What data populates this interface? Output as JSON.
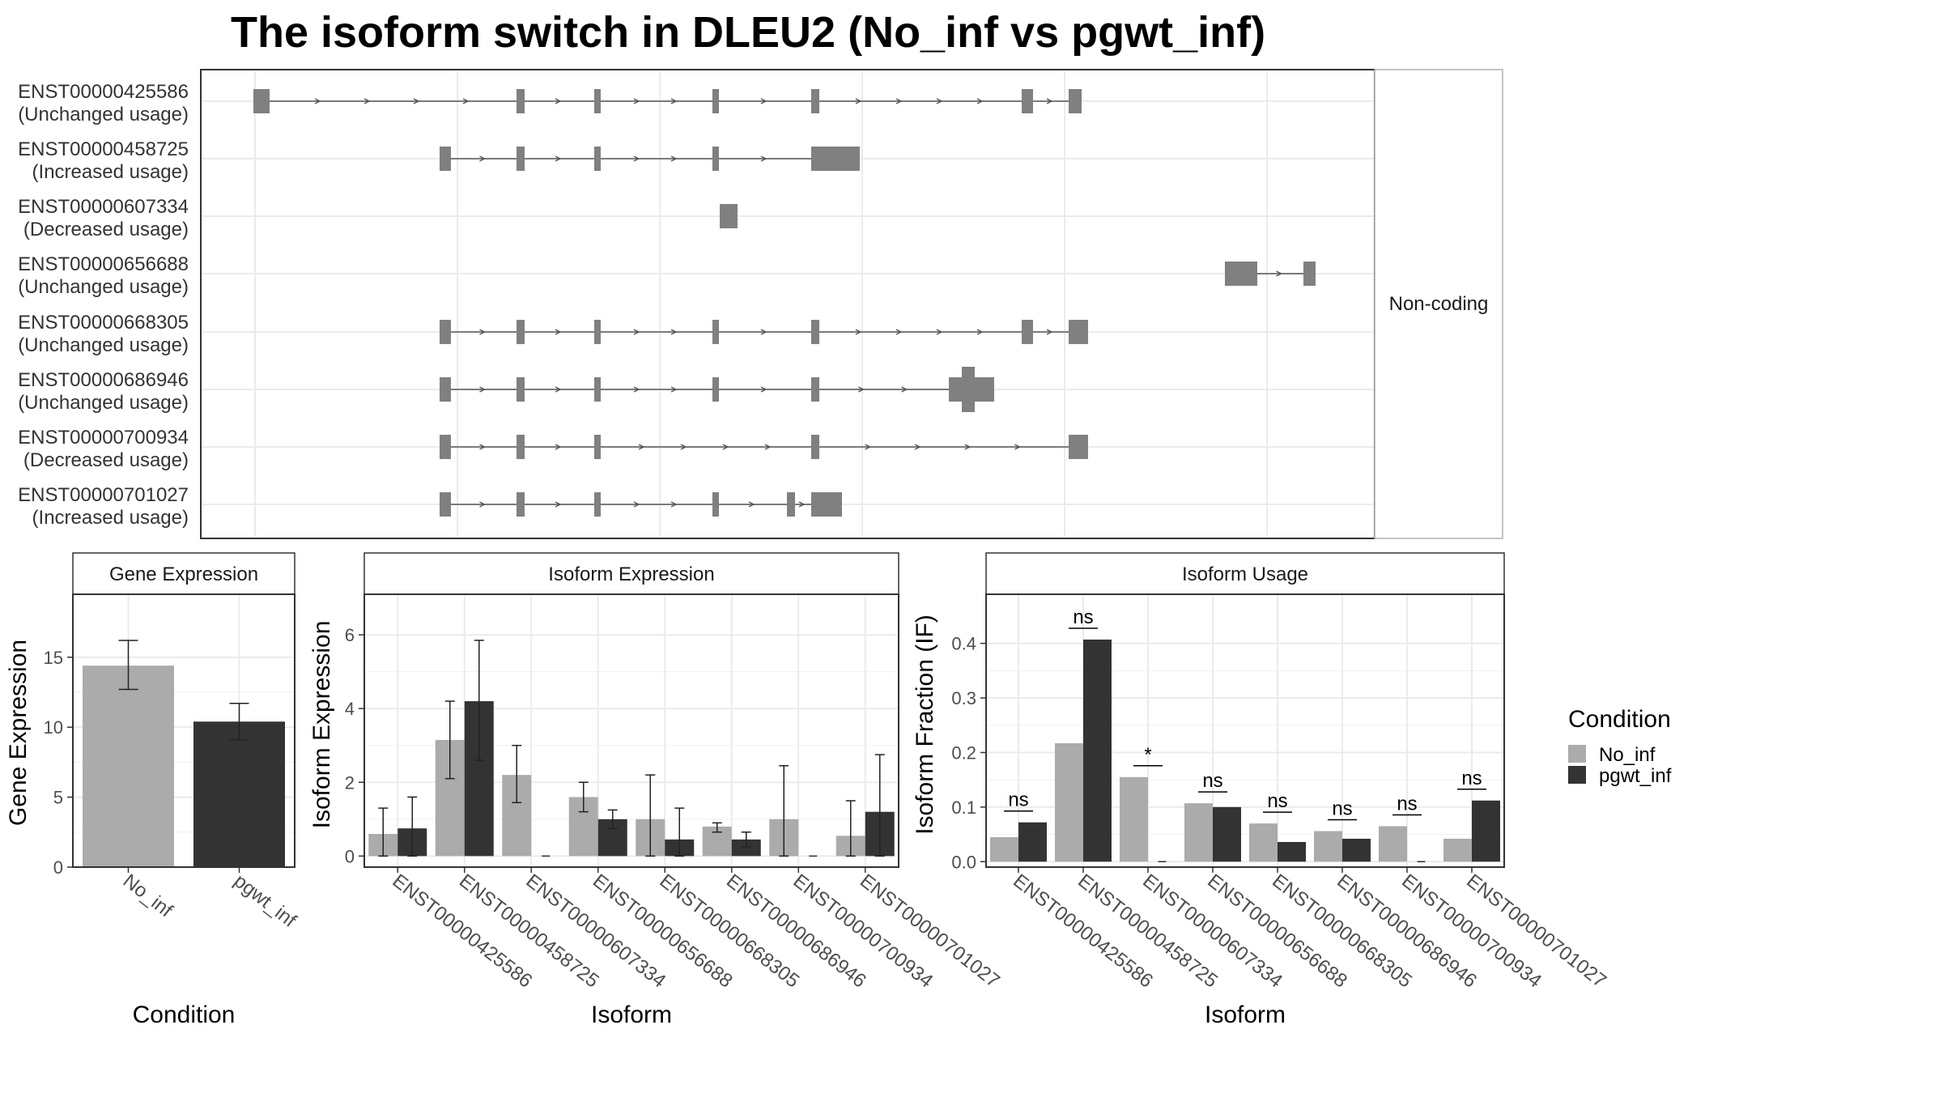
{
  "title": "The isoform switch in DLEU2 (No_inf vs pgwt_inf)",
  "colors": {
    "no_inf": "#ababab",
    "pgwt_inf": "#333333",
    "exon": "#808080",
    "intron": "#555555",
    "grid": "#ebebeb",
    "strip_bg": "#ffffff",
    "border": "#333333"
  },
  "transcript_panel": {
    "facet_label": "Non-coding",
    "isoforms": [
      {
        "id": "ENST00000425586",
        "usage": "(Unchanged usage)"
      },
      {
        "id": "ENST00000458725",
        "usage": "(Increased usage)"
      },
      {
        "id": "ENST00000607334",
        "usage": "(Decreased usage)"
      },
      {
        "id": "ENST00000656688",
        "usage": "(Unchanged usage)"
      },
      {
        "id": "ENST00000668305",
        "usage": "(Unchanged usage)"
      },
      {
        "id": "ENST00000686946",
        "usage": "(Unchanged usage)"
      },
      {
        "id": "ENST00000700934",
        "usage": "(Decreased usage)"
      },
      {
        "id": "ENST00000701027",
        "usage": "(Increased usage)"
      }
    ]
  },
  "legend": {
    "title": "Condition",
    "items": [
      "No_inf",
      "pgwt_inf"
    ]
  },
  "chart_data": [
    {
      "type": "bar",
      "panel": "Gene Expression",
      "strip": "Gene Expression",
      "xlabel": "Condition",
      "ylabel": "Gene Expression",
      "categories": [
        "No_inf",
        "pgwt_inf"
      ],
      "values": [
        14.4,
        10.4
      ],
      "error_low": [
        12.7,
        9.1
      ],
      "error_high": [
        16.2,
        11.7
      ],
      "yticks": [
        "0",
        "5",
        "10",
        "15"
      ],
      "ylim": [
        0,
        19.5
      ]
    },
    {
      "type": "bar",
      "panel": "Isoform Expression",
      "strip": "Isoform Expression",
      "xlabel": "Isoform",
      "ylabel": "Isoform Expression",
      "categories": [
        "ENST00000425586",
        "ENST00000458725",
        "ENST00000607334",
        "ENST00000656688",
        "ENST00000668305",
        "ENST00000686946",
        "ENST00000700934",
        "ENST00000701027"
      ],
      "series": [
        {
          "name": "No_inf",
          "values": [
            0.6,
            3.15,
            2.2,
            1.6,
            1.0,
            0.8,
            1.0,
            0.55
          ],
          "error_low": [
            0.0,
            2.1,
            1.45,
            1.2,
            0.0,
            0.65,
            0.0,
            0.0
          ],
          "error_high": [
            1.3,
            4.2,
            3.0,
            2.0,
            2.2,
            0.9,
            2.45,
            1.5
          ]
        },
        {
          "name": "pgwt_inf",
          "values": [
            0.75,
            4.2,
            0.0,
            1.0,
            0.45,
            0.45,
            0.0,
            1.2
          ],
          "error_low": [
            0.0,
            2.6,
            0.0,
            0.75,
            0.0,
            0.25,
            0.0,
            0.0
          ],
          "error_high": [
            1.6,
            5.85,
            0.0,
            1.25,
            1.3,
            0.65,
            0.0,
            2.75
          ]
        }
      ],
      "yticks": [
        "0",
        "2",
        "4",
        "6"
      ],
      "ylim": [
        -0.3,
        7.1
      ]
    },
    {
      "type": "bar",
      "panel": "Isoform Usage",
      "strip": "Isoform Usage",
      "xlabel": "Isoform",
      "ylabel": "Isoform Fraction (IF)",
      "categories": [
        "ENST00000425586",
        "ENST00000458725",
        "ENST00000607334",
        "ENST00000656688",
        "ENST00000668305",
        "ENST00000686946",
        "ENST00000700934",
        "ENST00000701027"
      ],
      "series": [
        {
          "name": "No_inf",
          "values": [
            0.045,
            0.217,
            0.155,
            0.107,
            0.07,
            0.056,
            0.065,
            0.042
          ]
        },
        {
          "name": "pgwt_inf",
          "values": [
            0.072,
            0.407,
            0.0,
            0.1,
            0.036,
            0.042,
            0.0,
            0.112
          ]
        }
      ],
      "significance": [
        "ns",
        "ns",
        "*",
        "ns",
        "ns",
        "ns",
        "ns",
        "ns"
      ],
      "yticks": [
        "0.0",
        "0.1",
        "0.2",
        "0.3",
        "0.4"
      ],
      "ylim": [
        -0.01,
        0.49
      ]
    }
  ]
}
